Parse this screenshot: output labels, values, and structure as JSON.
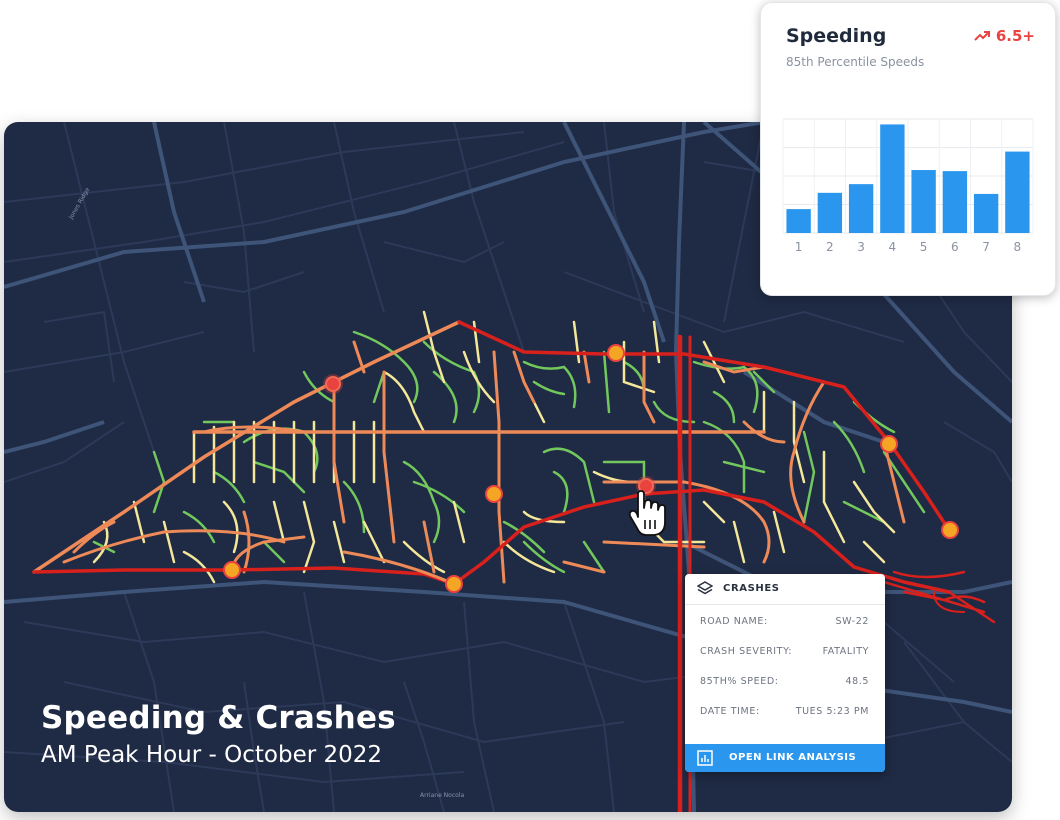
{
  "map": {
    "title": "Speeding & Crashes",
    "subtitle": "AM Peak Hour - October 2022",
    "street_labels": [
      "Jones Ridge",
      "Arriane Nocola"
    ],
    "colors": {
      "background": "#1f2a44",
      "minor_streets": "#2c3958",
      "major_streets": "#3e5478",
      "fast": "#d8201c",
      "moderate": "#ee8a58",
      "slow": "#f4e79a",
      "slowest": "#72c85c"
    },
    "markers": {
      "crash_high_severity_color": "#e8433f",
      "crash_other_color": "#f5a524"
    }
  },
  "speed_chart": {
    "title": "Speeding",
    "subtitle": "85th Percentile Speeds",
    "badge": "6.5+",
    "badge_icon": "trending-up-icon",
    "badge_color": "#e8433f",
    "chart_data": {
      "type": "bar",
      "categories": [
        "1",
        "2",
        "3",
        "4",
        "5",
        "6",
        "7",
        "8"
      ],
      "values": [
        22,
        37,
        45,
        100,
        58,
        57,
        36,
        75
      ],
      "ylim": [
        0,
        105
      ],
      "grid": true,
      "color": "#2b96ee",
      "title": "",
      "xlabel": "",
      "ylabel": ""
    }
  },
  "crash_popup": {
    "header_icon": "layers-icon",
    "header": "CRASHES",
    "rows": [
      {
        "label": "ROAD NAME:",
        "value": "SW-22"
      },
      {
        "label": "CRASH SEVERITY:",
        "value": "FATALITY"
      },
      {
        "label": "85TH% SPEED:",
        "value": "48.5"
      },
      {
        "label": "DATE TIME:",
        "value": "TUES 5:23 PM"
      }
    ],
    "button": "OPEN LINK ANALYSIS",
    "button_icon": "bar-chart-icon",
    "button_color": "#2b96ee"
  },
  "pointer": {
    "icon": "hand-pointer-icon"
  }
}
